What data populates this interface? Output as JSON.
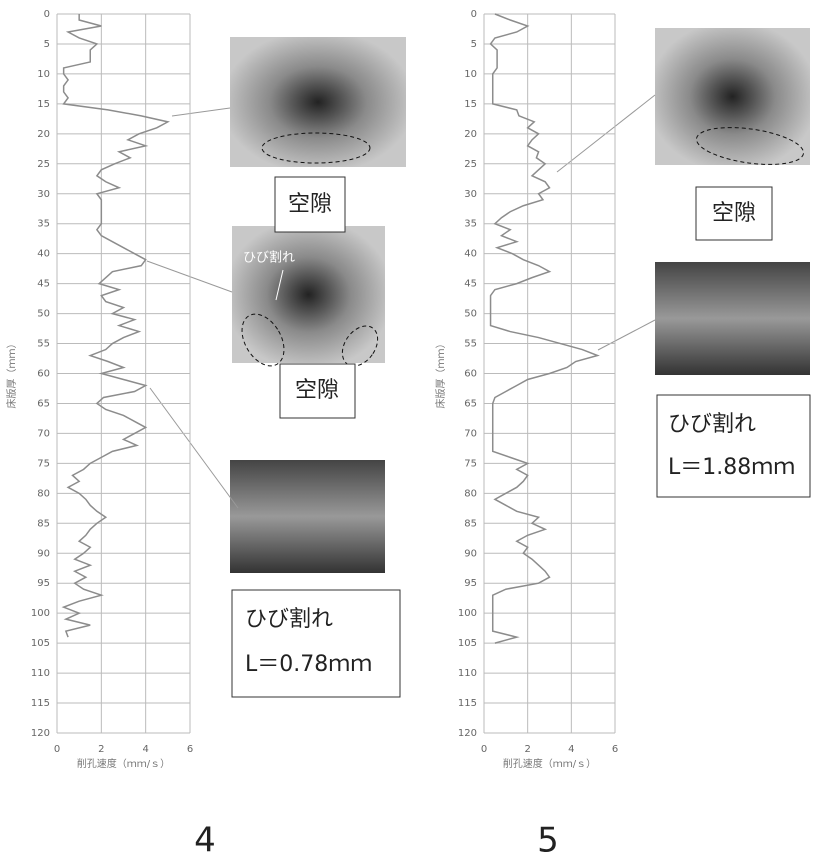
{
  "chart_data": [
    {
      "type": "line",
      "label": "4",
      "xlabel": "削孔速度（ｍｍ/ｓ）",
      "ylabel": "床版厚（ｍｍ）",
      "xlim": [
        0,
        6
      ],
      "xticks": [
        0,
        2,
        4,
        6
      ],
      "ylim": [
        0,
        120
      ],
      "yticks": [
        0,
        5,
        10,
        15,
        20,
        25,
        30,
        35,
        40,
        45,
        50,
        55,
        60,
        65,
        70,
        75,
        80,
        85,
        90,
        95,
        100,
        105,
        110,
        115,
        120
      ],
      "y_inverted": true,
      "grid": true,
      "y": [
        0,
        1,
        2,
        3,
        4,
        5,
        6,
        7,
        8,
        9,
        10,
        11,
        12,
        13,
        14,
        15,
        16,
        17,
        18,
        19,
        20,
        21,
        22,
        23,
        24,
        25,
        26,
        27,
        28,
        29,
        30,
        31,
        32,
        33,
        34,
        35,
        36,
        37,
        38,
        39,
        40,
        41,
        42,
        43,
        44,
        45,
        46,
        47,
        48,
        49,
        50,
        51,
        52,
        53,
        54,
        55,
        56,
        57,
        58,
        59,
        60,
        61,
        62,
        63,
        64,
        65,
        66,
        67,
        68,
        69,
        70,
        71,
        72,
        73,
        74,
        75,
        76,
        77,
        78,
        79,
        80,
        81,
        82,
        83,
        84,
        85,
        86,
        87,
        88,
        89,
        90,
        91,
        92,
        93,
        94,
        95,
        96,
        97,
        98,
        99,
        100,
        101,
        102,
        103,
        104
      ],
      "series": [
        {
          "color": "#8c8c8c",
          "values": [
            1,
            1,
            2,
            0.5,
            1,
            1.8,
            1.5,
            1.5,
            1.5,
            0.3,
            0.3,
            0.5,
            0.3,
            0.3,
            0.5,
            0.3,
            2.3,
            3.8,
            5,
            4.5,
            3.7,
            3.2,
            4,
            2.8,
            3.3,
            2.6,
            2,
            1.8,
            2.2,
            2.8,
            1.8,
            2,
            2,
            2,
            2,
            2,
            1.8,
            2,
            2.5,
            3,
            3.5,
            4,
            3.8,
            2.5,
            2.2,
            1.9,
            2.8,
            2,
            2.2,
            3,
            2.5,
            3.5,
            2.8,
            3.7,
            3,
            2.5,
            2.2,
            1.5,
            2.3,
            3,
            2,
            3,
            4,
            3.5,
            2.1,
            1.8,
            2.2,
            3,
            3.5,
            4,
            3.5,
            3,
            3.6,
            2.5,
            2,
            1.5,
            1.2,
            0.7,
            1,
            0.5,
            1,
            1.3,
            1.5,
            1.8,
            2.2,
            1.8,
            1.5,
            1.3,
            1,
            1.5,
            1.2,
            0.8,
            1.5,
            0.8,
            1.3,
            0.8,
            1.2,
            2,
            1,
            0.3,
            1,
            0.4,
            1.5,
            0.4,
            0.5
          ]
        }
      ],
      "annotations": [
        "空隙",
        "空隙",
        "ひび割れ",
        "ひび割れ",
        "L＝0.78ｍｍ"
      ]
    },
    {
      "type": "line",
      "label": "5",
      "xlabel": "削孔速度（ｍｍ/ｓ）",
      "ylabel": "床版厚（ｍｍ）",
      "xlim": [
        0,
        6
      ],
      "xticks": [
        0,
        2,
        4,
        6
      ],
      "ylim": [
        0,
        120
      ],
      "yticks": [
        0,
        5,
        10,
        15,
        20,
        25,
        30,
        35,
        40,
        45,
        50,
        55,
        60,
        65,
        70,
        75,
        80,
        85,
        90,
        95,
        100,
        105,
        110,
        115,
        120
      ],
      "y_inverted": true,
      "grid": true,
      "y": [
        0,
        1,
        2,
        3,
        4,
        5,
        6,
        7,
        8,
        9,
        10,
        11,
        12,
        13,
        14,
        15,
        16,
        17,
        18,
        19,
        20,
        21,
        22,
        23,
        24,
        25,
        26,
        27,
        28,
        29,
        30,
        31,
        32,
        33,
        34,
        35,
        36,
        37,
        38,
        39,
        40,
        41,
        42,
        43,
        44,
        45,
        46,
        47,
        48,
        49,
        50,
        51,
        52,
        53,
        54,
        55,
        56,
        57,
        58,
        59,
        60,
        61,
        62,
        63,
        64,
        65,
        66,
        67,
        68,
        69,
        70,
        71,
        72,
        73,
        74,
        75,
        76,
        77,
        78,
        79,
        80,
        81,
        82,
        83,
        84,
        85,
        86,
        87,
        88,
        89,
        90,
        91,
        92,
        93,
        94,
        95,
        96,
        97,
        98,
        99,
        100,
        101,
        102,
        103,
        104,
        105
      ],
      "series": [
        {
          "color": "#8c8c8c",
          "values": [
            0.5,
            1.2,
            2,
            1.5,
            0.5,
            0.3,
            0.6,
            0.6,
            0.6,
            0.6,
            0.4,
            0.4,
            0.4,
            0.4,
            0.4,
            0.4,
            1.5,
            1.6,
            2.3,
            2,
            2.5,
            2.2,
            2,
            2.5,
            2.4,
            2.8,
            2.5,
            2.2,
            2.8,
            3,
            2.5,
            2.7,
            1.8,
            1.2,
            0.8,
            0.5,
            1.2,
            0.8,
            1.5,
            0.6,
            1.3,
            1.8,
            2.5,
            3,
            2.2,
            1.5,
            0.5,
            0.3,
            0.3,
            0.3,
            0.3,
            0.3,
            0.3,
            1.2,
            2.5,
            3.5,
            4.5,
            5.2,
            4.2,
            3.8,
            3,
            2,
            1.5,
            1,
            0.5,
            0.4,
            0.4,
            0.4,
            0.4,
            0.4,
            0.4,
            0.4,
            0.4,
            0.4,
            1.2,
            2,
            1.5,
            2,
            1.8,
            1.5,
            1,
            0.5,
            1,
            1.5,
            2.5,
            2.2,
            2.8,
            2,
            1.5,
            2,
            1.8,
            2.2,
            2.5,
            2.8,
            3,
            2.5,
            1,
            0.4,
            0.4,
            0.4,
            0.4,
            0.4,
            0.4,
            0.4,
            1.5,
            0.5
          ]
        }
      ],
      "annotations": [
        "空隙",
        "ひび割れ",
        "L＝1.88ｍｍ"
      ]
    }
  ]
}
